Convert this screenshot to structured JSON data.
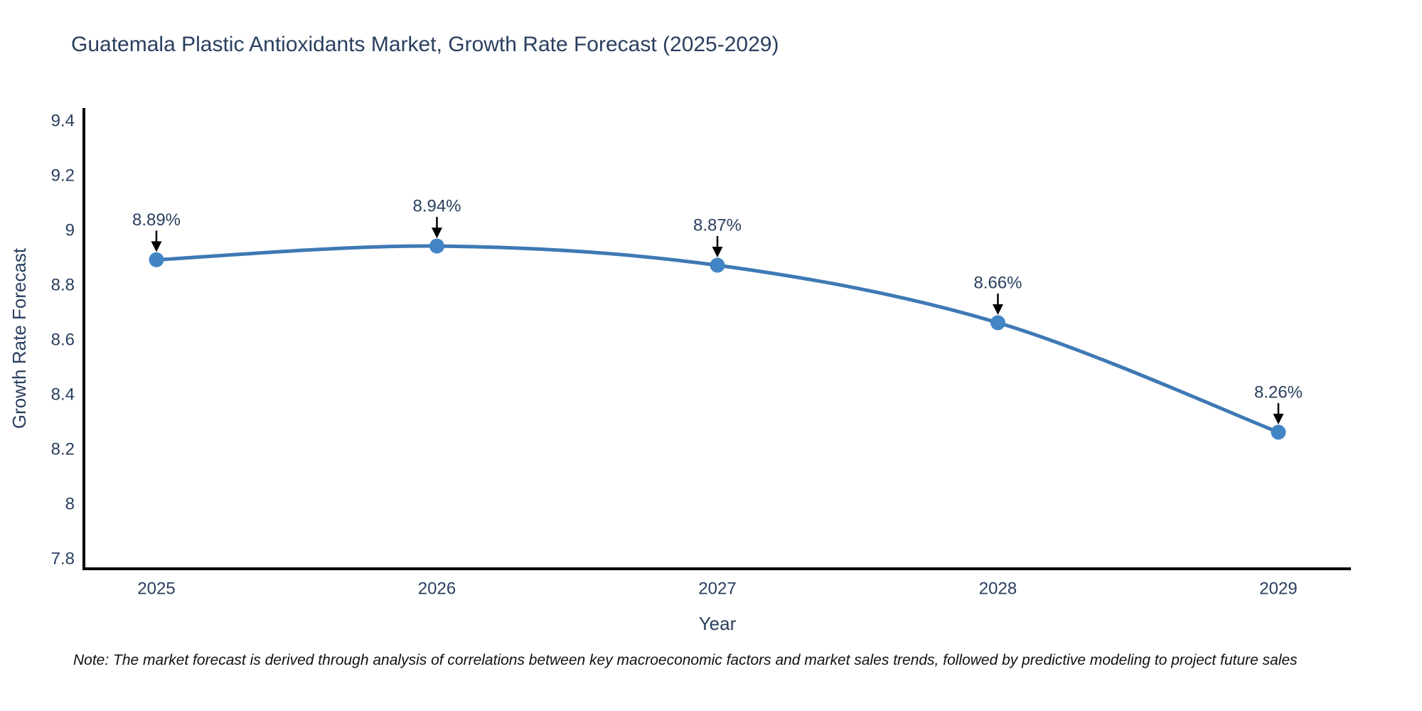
{
  "title": "Guatemala Plastic Antioxidants Market, Growth Rate Forecast (2025-2029)",
  "note": "Note: The market forecast is derived through analysis of correlations between key macroeconomic factors and market sales trends, followed by predictive modeling to project future sales",
  "chart_data": {
    "type": "line",
    "x": [
      2025,
      2026,
      2027,
      2028,
      2029
    ],
    "y": [
      8.89,
      8.94,
      8.87,
      8.66,
      8.26
    ],
    "point_labels": [
      "8.89%",
      "8.94%",
      "8.87%",
      "8.66%",
      "8.26%"
    ],
    "xticks": [
      "2025",
      "2026",
      "2027",
      "2028",
      "2029"
    ],
    "yticks": [
      "9.4",
      "9.2",
      "9",
      "8.8",
      "8.6",
      "8.4",
      "8.2",
      "8",
      "7.8"
    ],
    "xlabel": "Year",
    "ylabel": "Growth Rate Forecast",
    "ylim": [
      7.8,
      9.4
    ],
    "line_shape": "spline",
    "grid": false,
    "legend_position": "none",
    "line_color": "#3e79b4",
    "marker_color": "#4285c4",
    "axis_color": "#000000",
    "text_color": "#2a3f5f",
    "arrow_color": "#000000"
  }
}
